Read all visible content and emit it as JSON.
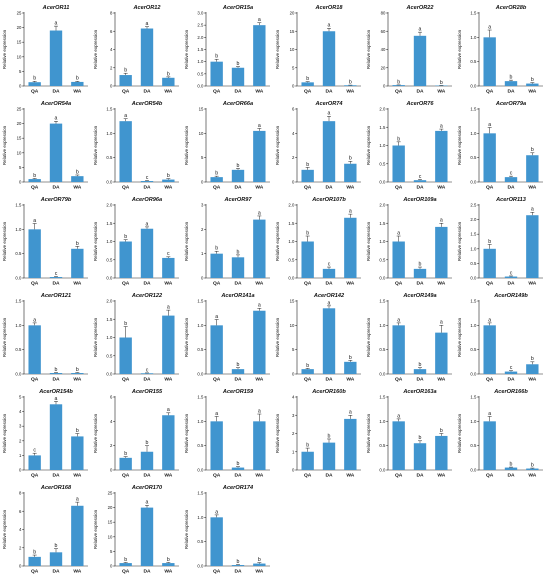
{
  "chart_data": [
    {
      "type": "bar",
      "title": "AcerOR11",
      "categories": [
        "QA",
        "DA",
        "WA"
      ],
      "values": [
        1.3,
        19.0,
        1.4
      ],
      "errors": [
        0.3,
        1.5,
        0.2
      ],
      "letters": [
        "b",
        "a",
        "b"
      ],
      "ylim": [
        0,
        25
      ],
      "yticks": [
        0,
        5,
        10,
        15,
        20,
        25
      ],
      "ylabel": "Relative expression"
    },
    {
      "type": "bar",
      "title": "AcerOR12",
      "categories": [
        "QA",
        "DA",
        "WA"
      ],
      "values": [
        1.2,
        6.3,
        0.9
      ],
      "errors": [
        0.2,
        0.2,
        0.1
      ],
      "letters": [
        "b",
        "a",
        "b"
      ],
      "ylim": [
        0,
        8
      ],
      "yticks": [
        0,
        2,
        4,
        6,
        8
      ],
      "ylabel": "Relative expression"
    },
    {
      "type": "bar",
      "title": "AcerOR15a",
      "categories": [
        "QA",
        "DA",
        "WA"
      ],
      "values": [
        1.0,
        0.75,
        2.5
      ],
      "errors": [
        0.1,
        0.05,
        0.1
      ],
      "letters": [
        "b",
        "b",
        "a"
      ],
      "ylim": [
        0,
        3
      ],
      "yticks": [
        0.0,
        0.5,
        1.0,
        1.5,
        2.0,
        2.5,
        3.0
      ],
      "ylabel": "Relative expression"
    },
    {
      "type": "bar",
      "title": "AcerOR18",
      "categories": [
        "QA",
        "DA",
        "WA"
      ],
      "values": [
        1.0,
        15.0,
        0.2
      ],
      "errors": [
        0.2,
        0.8,
        0.05
      ],
      "letters": [
        "b",
        "a",
        "b"
      ],
      "ylim": [
        0,
        20
      ],
      "yticks": [
        0,
        5,
        10,
        15,
        20
      ],
      "ylabel": "Relative expression"
    },
    {
      "type": "bar",
      "title": "AcerOR22",
      "categories": [
        "QA",
        "DA",
        "WA"
      ],
      "values": [
        1.0,
        55.0,
        0.5
      ],
      "errors": [
        0.2,
        4,
        0.1
      ],
      "letters": [
        "b",
        "a",
        "b"
      ],
      "ylim": [
        0,
        80
      ],
      "yticks": [
        0,
        20,
        40,
        60,
        80
      ],
      "ylabel": "Relative expression"
    },
    {
      "type": "bar",
      "title": "AcerOR28b",
      "categories": [
        "QA",
        "DA",
        "WA"
      ],
      "values": [
        1.0,
        0.1,
        0.05
      ],
      "errors": [
        0.15,
        0.02,
        0.02
      ],
      "letters": [
        "a",
        "b",
        "b"
      ],
      "ylim": [
        0,
        1.5
      ],
      "yticks": [
        0.0,
        0.5,
        1.0,
        1.5
      ],
      "ylabel": "Relative expression"
    },
    {
      "type": "bar",
      "title": "AcerOR54a",
      "categories": [
        "QA",
        "DA",
        "WA"
      ],
      "values": [
        1.0,
        20.0,
        2.0
      ],
      "errors": [
        0.2,
        0.8,
        0.4
      ],
      "letters": [
        "b",
        "a",
        "b"
      ],
      "ylim": [
        0,
        25
      ],
      "yticks": [
        0,
        5,
        10,
        15,
        20,
        25
      ],
      "ylabel": "Relative expression"
    },
    {
      "type": "bar",
      "title": "AcerOR54b",
      "categories": [
        "QA",
        "DA",
        "WA"
      ],
      "values": [
        1.25,
        0.02,
        0.05
      ],
      "errors": [
        0.05,
        0.01,
        0.02
      ],
      "letters": [
        "a",
        "c",
        "b"
      ],
      "ylim": [
        0,
        1.5
      ],
      "yticks": [
        0.0,
        0.5,
        1.0,
        1.5
      ],
      "ylabel": "Relative expression"
    },
    {
      "type": "bar",
      "title": "AcerOR66a",
      "categories": [
        "QA",
        "DA",
        "WA"
      ],
      "values": [
        1.0,
        2.5,
        10.5
      ],
      "errors": [
        0.2,
        0.3,
        0.5
      ],
      "letters": [
        "b",
        "b",
        "a"
      ],
      "ylim": [
        0,
        15
      ],
      "yticks": [
        0,
        5,
        10,
        15
      ],
      "ylabel": "Relative expression"
    },
    {
      "type": "bar",
      "title": "AcerOR74",
      "categories": [
        "QA",
        "DA",
        "WA"
      ],
      "values": [
        1.0,
        5.0,
        1.5
      ],
      "errors": [
        0.2,
        0.4,
        0.2
      ],
      "letters": [
        "b",
        "a",
        "b"
      ],
      "ylim": [
        0,
        6
      ],
      "yticks": [
        0,
        2,
        4,
        6
      ],
      "ylabel": "Relative expression"
    },
    {
      "type": "bar",
      "title": "AcerOR76",
      "categories": [
        "QA",
        "DA",
        "WA"
      ],
      "values": [
        1.0,
        0.05,
        1.4
      ],
      "errors": [
        0.1,
        0.02,
        0.05
      ],
      "letters": [
        "b",
        "c",
        "a"
      ],
      "ylim": [
        0,
        2.0
      ],
      "yticks": [
        0.0,
        0.5,
        1.0,
        1.5,
        2.0
      ],
      "ylabel": "Relative expression"
    },
    {
      "type": "bar",
      "title": "AcerOR79a",
      "categories": [
        "QA",
        "DA",
        "WA"
      ],
      "values": [
        1.0,
        0.1,
        0.55
      ],
      "errors": [
        0.12,
        0.02,
        0.05
      ],
      "letters": [
        "a",
        "c",
        "b"
      ],
      "ylim": [
        0,
        1.5
      ],
      "yticks": [
        0.0,
        0.5,
        1.0,
        1.5
      ],
      "ylabel": "Relative expression"
    },
    {
      "type": "bar",
      "title": "AcerOR79b",
      "categories": [
        "QA",
        "DA",
        "WA"
      ],
      "values": [
        1.0,
        0.02,
        0.6
      ],
      "errors": [
        0.12,
        0.01,
        0.05
      ],
      "letters": [
        "a",
        "c",
        "b"
      ],
      "ylim": [
        0,
        1.5
      ],
      "yticks": [
        0.0,
        0.5,
        1.0,
        1.5
      ],
      "ylabel": "Relative expression"
    },
    {
      "type": "bar",
      "title": "AcerOR96a",
      "categories": [
        "QA",
        "DA",
        "WA"
      ],
      "values": [
        1.0,
        1.35,
        0.55
      ],
      "errors": [
        0.05,
        0.05,
        0.03
      ],
      "letters": [
        "b",
        "a",
        "c"
      ],
      "ylim": [
        0,
        2.0
      ],
      "yticks": [
        0.0,
        0.5,
        1.0,
        1.5,
        2.0
      ],
      "ylabel": "Relative expression"
    },
    {
      "type": "bar",
      "title": "AcerOR97",
      "categories": [
        "QA",
        "DA",
        "WA"
      ],
      "values": [
        1.0,
        0.85,
        2.4
      ],
      "errors": [
        0.1,
        0.1,
        0.15
      ],
      "letters": [
        "b",
        "b",
        "a"
      ],
      "ylim": [
        0,
        3
      ],
      "yticks": [
        0,
        1,
        2,
        3
      ],
      "ylabel": "Relative expression"
    },
    {
      "type": "bar",
      "title": "AcerOR107b",
      "categories": [
        "QA",
        "DA",
        "WA"
      ],
      "values": [
        1.0,
        0.25,
        1.65
      ],
      "errors": [
        0.15,
        0.05,
        0.1
      ],
      "letters": [
        "b",
        "c",
        "a"
      ],
      "ylim": [
        0,
        2.0
      ],
      "yticks": [
        0.0,
        0.5,
        1.0,
        1.5,
        2.0
      ],
      "ylabel": "Relative expression"
    },
    {
      "type": "bar",
      "title": "AcerOR109a",
      "categories": [
        "QA",
        "DA",
        "WA"
      ],
      "values": [
        1.0,
        0.25,
        1.4
      ],
      "errors": [
        0.15,
        0.05,
        0.1
      ],
      "letters": [
        "a",
        "b",
        "a"
      ],
      "ylim": [
        0,
        2.0
      ],
      "yticks": [
        0.0,
        0.5,
        1.0,
        1.5,
        2.0
      ],
      "ylabel": "Relative expression"
    },
    {
      "type": "bar",
      "title": "AcerOR113",
      "categories": [
        "QA",
        "DA",
        "WA"
      ],
      "values": [
        1.0,
        0.05,
        2.15
      ],
      "errors": [
        0.15,
        0.02,
        0.1
      ],
      "letters": [
        "b",
        "c",
        "a"
      ],
      "ylim": [
        0,
        2.5
      ],
      "yticks": [
        0.0,
        0.5,
        1.0,
        1.5,
        2.0,
        2.5
      ],
      "ylabel": "Relative expression"
    },
    {
      "type": "bar",
      "title": "AcerOR121",
      "categories": [
        "QA",
        "DA",
        "WA"
      ],
      "values": [
        1.0,
        0.02,
        0.02
      ],
      "errors": [
        0.05,
        0.01,
        0.01
      ],
      "letters": [
        "a",
        "b",
        "b"
      ],
      "ylim": [
        0,
        1.5
      ],
      "yticks": [
        0.0,
        0.5,
        1.0,
        1.5
      ],
      "ylabel": "Relative expression"
    },
    {
      "type": "bar",
      "title": "AcerOR122",
      "categories": [
        "QA",
        "DA",
        "WA"
      ],
      "values": [
        1.0,
        0.02,
        1.6
      ],
      "errors": [
        0.3,
        0.01,
        0.15
      ],
      "letters": [
        "b",
        "c",
        "a"
      ],
      "ylim": [
        0,
        2.0
      ],
      "yticks": [
        0.0,
        0.5,
        1.0,
        1.5,
        2.0
      ],
      "ylabel": "Relative expression"
    },
    {
      "type": "bar",
      "title": "AcerOR141a",
      "categories": [
        "QA",
        "DA",
        "WA"
      ],
      "values": [
        1.0,
        0.1,
        1.3
      ],
      "errors": [
        0.12,
        0.03,
        0.05
      ],
      "letters": [
        "a",
        "b",
        "a"
      ],
      "ylim": [
        0,
        1.5
      ],
      "yticks": [
        0.0,
        0.5,
        1.0,
        1.5
      ],
      "ylabel": "Relative expression"
    },
    {
      "type": "bar",
      "title": "AcerOR142",
      "categories": [
        "QA",
        "DA",
        "WA"
      ],
      "values": [
        1.0,
        13.5,
        2.5
      ],
      "errors": [
        0.15,
        0.5,
        0.3
      ],
      "letters": [
        "b",
        "a",
        "b"
      ],
      "ylim": [
        0,
        15
      ],
      "yticks": [
        0,
        5,
        10,
        15
      ],
      "ylabel": "Relative expression"
    },
    {
      "type": "bar",
      "title": "AcerOR149a",
      "categories": [
        "QA",
        "DA",
        "WA"
      ],
      "values": [
        1.0,
        0.1,
        0.85
      ],
      "errors": [
        0.05,
        0.03,
        0.15
      ],
      "letters": [
        "a",
        "b",
        "a"
      ],
      "ylim": [
        0,
        1.5
      ],
      "yticks": [
        0.0,
        0.5,
        1.0,
        1.5
      ],
      "ylabel": "Relative expression"
    },
    {
      "type": "bar",
      "title": "AcerOR149b",
      "categories": [
        "QA",
        "DA",
        "WA"
      ],
      "values": [
        1.0,
        0.05,
        0.2
      ],
      "errors": [
        0.05,
        0.02,
        0.05
      ],
      "letters": [
        "a",
        "c",
        "b"
      ],
      "ylim": [
        0,
        1.5
      ],
      "yticks": [
        0.0,
        0.5,
        1.0,
        1.5
      ],
      "ylabel": "Relative expression"
    },
    {
      "type": "bar",
      "title": "AcerOR154b",
      "categories": [
        "QA",
        "DA",
        "WA"
      ],
      "values": [
        1.0,
        4.5,
        2.3
      ],
      "errors": [
        0.15,
        0.2,
        0.2
      ],
      "letters": [
        "c",
        "a",
        "b"
      ],
      "ylim": [
        0,
        5
      ],
      "yticks": [
        0,
        1,
        2,
        3,
        4,
        5
      ],
      "ylabel": "Relative expression"
    },
    {
      "type": "bar",
      "title": "AcerOR155",
      "categories": [
        "QA",
        "DA",
        "WA"
      ],
      "values": [
        1.0,
        1.5,
        4.5
      ],
      "errors": [
        0.1,
        0.5,
        0.2
      ],
      "letters": [
        "b",
        "b",
        "a"
      ],
      "ylim": [
        0,
        6
      ],
      "yticks": [
        0,
        2,
        4,
        6
      ],
      "ylabel": "Relative expression"
    },
    {
      "type": "bar",
      "title": "AcerOR159",
      "categories": [
        "QA",
        "DA",
        "WA"
      ],
      "values": [
        1.0,
        0.05,
        1.0
      ],
      "errors": [
        0.1,
        0.02,
        0.15
      ],
      "letters": [
        "a",
        "b",
        "a"
      ],
      "ylim": [
        0,
        1.5
      ],
      "yticks": [
        0.0,
        0.5,
        1.0,
        1.5
      ],
      "ylabel": "Relative expression"
    },
    {
      "type": "bar",
      "title": "AcerOR160b",
      "categories": [
        "QA",
        "DA",
        "WA"
      ],
      "values": [
        1.0,
        1.5,
        2.8
      ],
      "errors": [
        0.2,
        0.2,
        0.2
      ],
      "letters": [
        "b",
        "b",
        "a"
      ],
      "ylim": [
        0,
        4
      ],
      "yticks": [
        0,
        1,
        2,
        3,
        4
      ],
      "ylabel": "Relative expression"
    },
    {
      "type": "bar",
      "title": "AcerOR163a",
      "categories": [
        "QA",
        "DA",
        "WA"
      ],
      "values": [
        1.0,
        0.55,
        0.7
      ],
      "errors": [
        0.05,
        0.05,
        0.05
      ],
      "letters": [
        "a",
        "b",
        "b"
      ],
      "ylim": [
        0,
        1.5
      ],
      "yticks": [
        0.0,
        0.5,
        1.0,
        1.5
      ],
      "ylabel": "Relative expression"
    },
    {
      "type": "bar",
      "title": "AcerOR166b",
      "categories": [
        "QA",
        "DA",
        "WA"
      ],
      "values": [
        1.0,
        0.05,
        0.03
      ],
      "errors": [
        0.1,
        0.01,
        0.01
      ],
      "letters": [
        "a",
        "b",
        "b"
      ],
      "ylim": [
        0,
        1.5
      ],
      "yticks": [
        0.0,
        0.5,
        1.0,
        1.5
      ],
      "ylabel": "Relative expression"
    },
    {
      "type": "bar",
      "title": "AcerOR168",
      "categories": [
        "QA",
        "DA",
        "WA"
      ],
      "values": [
        1.0,
        1.5,
        6.6
      ],
      "errors": [
        0.2,
        0.4,
        0.4
      ],
      "letters": [
        "b",
        "b",
        "a"
      ],
      "ylim": [
        0,
        8
      ],
      "yticks": [
        0,
        2,
        4,
        6,
        8
      ],
      "ylabel": "Relative expression"
    },
    {
      "type": "bar",
      "title": "AcerOR170",
      "categories": [
        "QA",
        "DA",
        "WA"
      ],
      "values": [
        1.0,
        20.0,
        1.0
      ],
      "errors": [
        0.2,
        0.8,
        0.2
      ],
      "letters": [
        "b",
        "a",
        "b"
      ],
      "ylim": [
        0,
        25
      ],
      "yticks": [
        0,
        5,
        10,
        15,
        20,
        25
      ],
      "ylabel": "Relative expression"
    },
    {
      "type": "bar",
      "title": "AcerOR174",
      "categories": [
        "QA",
        "DA",
        "WA"
      ],
      "values": [
        1.0,
        0.02,
        0.05
      ],
      "errors": [
        0.05,
        0.01,
        0.02
      ],
      "letters": [
        "a",
        "b",
        "b"
      ],
      "ylim": [
        0,
        1.5
      ],
      "yticks": [
        0.0,
        0.5,
        1.0,
        1.5
      ],
      "ylabel": "Relative expression"
    }
  ],
  "style": {
    "bar_color": "#4095cf"
  }
}
